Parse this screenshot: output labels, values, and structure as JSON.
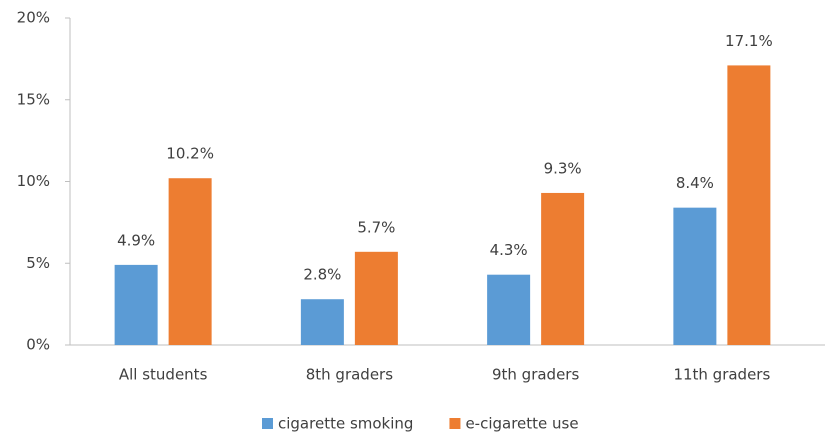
{
  "chart_data": {
    "type": "bar",
    "categories": [
      "All students",
      "8th graders",
      "9th graders",
      "11th graders"
    ],
    "series": [
      {
        "name": "cigarette smoking",
        "color": "#5b9bd5",
        "values": [
          4.9,
          2.8,
          4.3,
          8.4
        ],
        "value_labels": [
          "4.9%",
          "2.8%",
          "4.3%",
          "8.4%"
        ]
      },
      {
        "name": "e-cigarette use",
        "color": "#ed7d31",
        "values": [
          10.2,
          5.7,
          9.3,
          17.1
        ],
        "value_labels": [
          "10.2%",
          "5.7%",
          "9.3%",
          "17.1%"
        ]
      }
    ],
    "ylim": [
      0,
      20
    ],
    "yticks": [
      {
        "value": 0,
        "label": "0%"
      },
      {
        "value": 5,
        "label": "5%"
      },
      {
        "value": 10,
        "label": "10%"
      },
      {
        "value": 15,
        "label": "15%"
      },
      {
        "value": 20,
        "label": "20%"
      }
    ],
    "legend": "bottom"
  }
}
